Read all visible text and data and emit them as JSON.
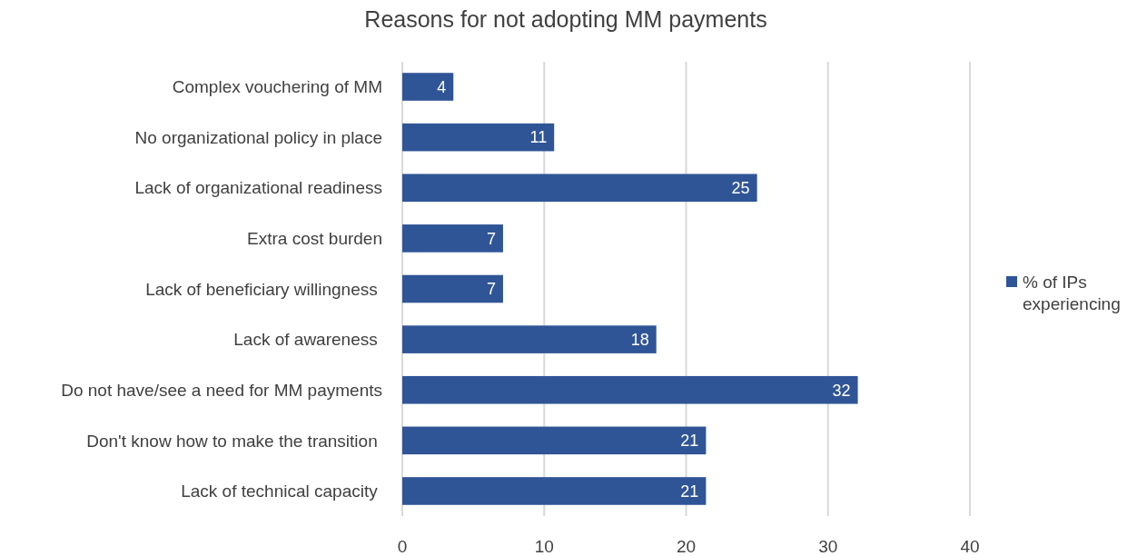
{
  "chart_data": {
    "type": "bar",
    "orientation": "horizontal",
    "title": "Reasons for not adopting MM payments",
    "categories": [
      "Complex vouchering of MM",
      "No organizational policy in place",
      "Lack of organizational readiness",
      "Extra cost burden",
      "Lack of beneficiary willingness ",
      "Lack of awareness ",
      "Do not have/see a need for MM payments",
      "Don't know how to make the transition ",
      "Lack of technical capacity "
    ],
    "series": [
      {
        "name": "% of IPs experiencing",
        "color": "#2f5597",
        "values": [
          3.6,
          10.7,
          25,
          7.1,
          7.1,
          17.9,
          32.1,
          21.4,
          21.4
        ],
        "value_labels": [
          "4",
          "11",
          "25",
          "7",
          "7",
          "18",
          "32",
          "21",
          "21"
        ]
      }
    ],
    "xlim": [
      0,
      40
    ],
    "xticks": [
      0,
      10,
      20,
      30,
      40
    ],
    "grid": "x",
    "legend": "right"
  }
}
